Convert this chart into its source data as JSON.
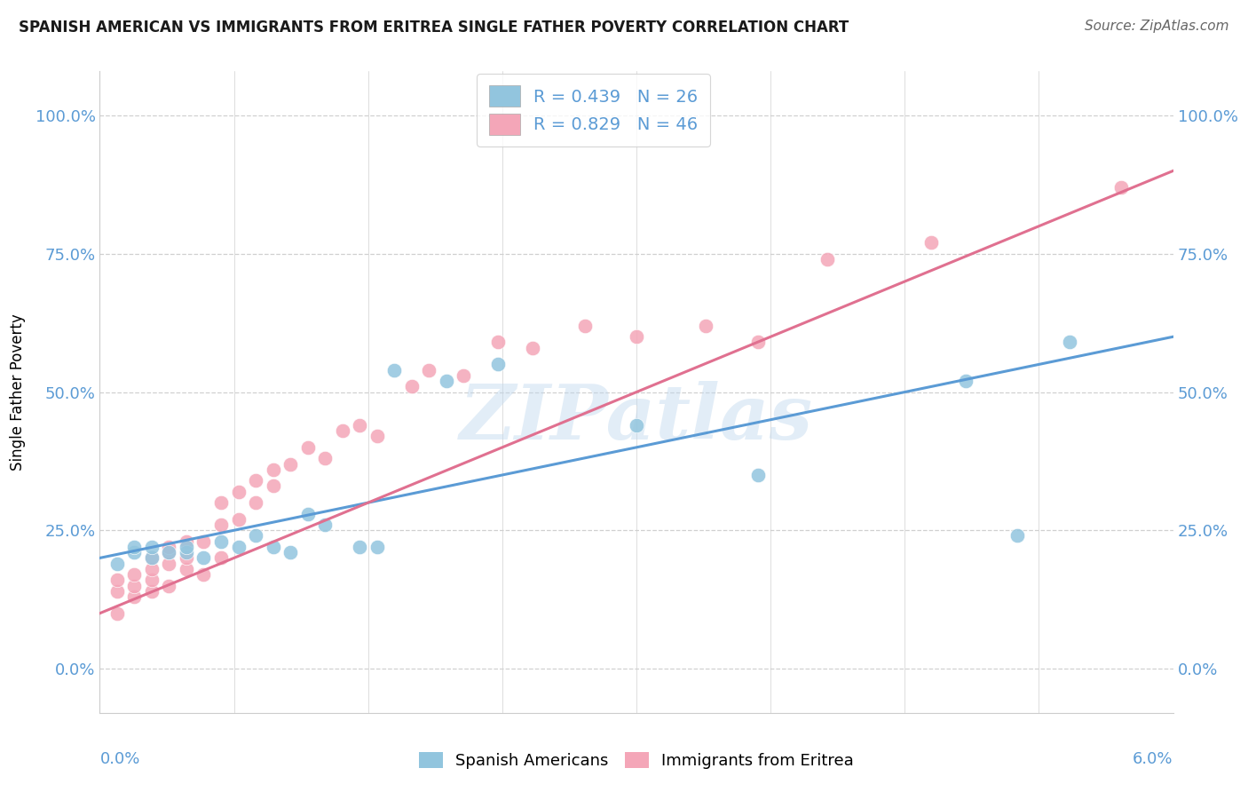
{
  "title": "SPANISH AMERICAN VS IMMIGRANTS FROM ERITREA SINGLE FATHER POVERTY CORRELATION CHART",
  "source": "Source: ZipAtlas.com",
  "ylabel": "Single Father Poverty",
  "yticks": [
    "0.0%",
    "25.0%",
    "50.0%",
    "75.0%",
    "100.0%"
  ],
  "ytick_vals": [
    0.0,
    0.25,
    0.5,
    0.75,
    1.0
  ],
  "xlim": [
    0.0,
    0.062
  ],
  "ylim": [
    -0.08,
    1.08
  ],
  "legend_r1": "R = 0.439   N = 26",
  "legend_r2": "R = 0.829   N = 46",
  "blue_color": "#92c5de",
  "pink_color": "#f4a6b8",
  "blue_line_color": "#5b9bd5",
  "pink_line_color": "#e07090",
  "watermark": "ZIPatlas",
  "blue_scatter_x": [
    0.001,
    0.002,
    0.002,
    0.003,
    0.003,
    0.004,
    0.005,
    0.005,
    0.006,
    0.007,
    0.008,
    0.009,
    0.01,
    0.011,
    0.012,
    0.013,
    0.015,
    0.016,
    0.017,
    0.02,
    0.023,
    0.031,
    0.038,
    0.05,
    0.053,
    0.056
  ],
  "blue_scatter_y": [
    0.19,
    0.21,
    0.22,
    0.2,
    0.22,
    0.21,
    0.21,
    0.22,
    0.2,
    0.23,
    0.22,
    0.24,
    0.22,
    0.21,
    0.28,
    0.26,
    0.22,
    0.22,
    0.54,
    0.52,
    0.55,
    0.44,
    0.35,
    0.52,
    0.24,
    0.59
  ],
  "pink_scatter_x": [
    0.001,
    0.001,
    0.001,
    0.002,
    0.002,
    0.002,
    0.003,
    0.003,
    0.003,
    0.003,
    0.004,
    0.004,
    0.004,
    0.004,
    0.005,
    0.005,
    0.005,
    0.006,
    0.006,
    0.007,
    0.007,
    0.007,
    0.008,
    0.008,
    0.009,
    0.009,
    0.01,
    0.01,
    0.011,
    0.012,
    0.013,
    0.014,
    0.015,
    0.016,
    0.018,
    0.019,
    0.021,
    0.023,
    0.025,
    0.028,
    0.031,
    0.035,
    0.038,
    0.042,
    0.048,
    0.059
  ],
  "pink_scatter_y": [
    0.1,
    0.14,
    0.16,
    0.13,
    0.15,
    0.17,
    0.14,
    0.16,
    0.18,
    0.2,
    0.15,
    0.19,
    0.21,
    0.22,
    0.18,
    0.2,
    0.23,
    0.17,
    0.23,
    0.2,
    0.26,
    0.3,
    0.27,
    0.32,
    0.3,
    0.34,
    0.33,
    0.36,
    0.37,
    0.4,
    0.38,
    0.43,
    0.44,
    0.42,
    0.51,
    0.54,
    0.53,
    0.59,
    0.58,
    0.62,
    0.6,
    0.62,
    0.59,
    0.74,
    0.77,
    0.87
  ],
  "blue_line_y0": 0.2,
  "blue_line_y1": 0.6,
  "pink_line_y0": 0.1,
  "pink_line_y1": 0.9,
  "background_color": "#ffffff",
  "grid_color": "#d0d0d0"
}
